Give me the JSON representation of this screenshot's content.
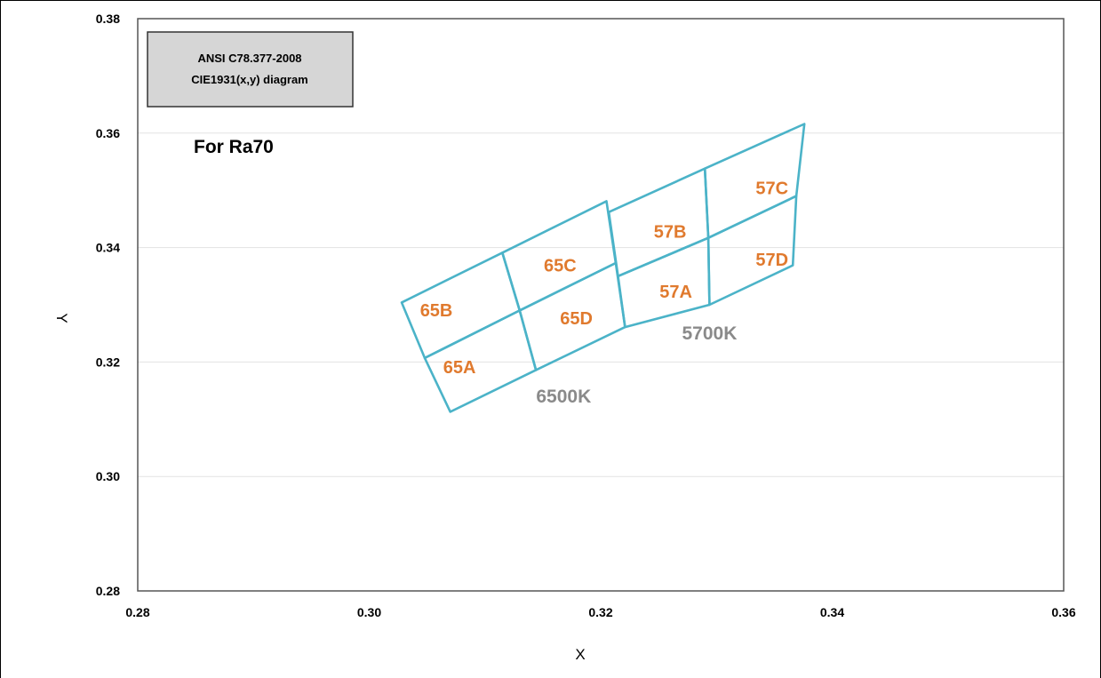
{
  "chart_data": {
    "type": "scatter",
    "title_box": [
      "ANSI C78.377-2008",
      "CIE1931(x,y)  diagram"
    ],
    "subtitle": "For Ra70",
    "xlabel": "X",
    "ylabel": "Y",
    "xlim": [
      0.28,
      0.36
    ],
    "ylim": [
      0.28,
      0.38
    ],
    "x_ticks": [
      "0.28",
      "0.30",
      "0.32",
      "0.34",
      "0.36"
    ],
    "y_ticks": [
      "0.28",
      "0.30",
      "0.32",
      "0.34",
      "0.36",
      "0.38"
    ],
    "grid": "horizontal",
    "colors": {
      "outline": "#4bb3c8",
      "bin_label": "#e07a2e",
      "cct_label": "#8a8a8a",
      "box_fill": "#d6d6d6",
      "grid": "#e2e2e2"
    },
    "bins": [
      {
        "name": "65A",
        "label_at": [
          0.3078,
          0.3191
        ],
        "corners": [
          [
            0.307,
            0.3113
          ],
          [
            0.3048,
            0.3207
          ],
          [
            0.313,
            0.329
          ],
          [
            0.3144,
            0.3186
          ]
        ]
      },
      {
        "name": "65B",
        "label_at": [
          0.3058,
          0.3291
        ],
        "corners": [
          [
            0.3048,
            0.3207
          ],
          [
            0.3028,
            0.3304
          ],
          [
            0.3115,
            0.3391
          ],
          [
            0.313,
            0.329
          ]
        ]
      },
      {
        "name": "65C",
        "label_at": [
          0.3165,
          0.3369
        ],
        "corners": [
          [
            0.313,
            0.329
          ],
          [
            0.3115,
            0.3391
          ],
          [
            0.3205,
            0.3481
          ],
          [
            0.3213,
            0.3373
          ]
        ]
      },
      {
        "name": "65D",
        "label_at": [
          0.3179,
          0.3277
        ],
        "corners": [
          [
            0.3144,
            0.3186
          ],
          [
            0.313,
            0.329
          ],
          [
            0.3213,
            0.3373
          ],
          [
            0.3221,
            0.3261
          ]
        ]
      },
      {
        "name": "57A",
        "label_at": [
          0.3265,
          0.3323
        ],
        "corners": [
          [
            0.3221,
            0.3261
          ],
          [
            0.3215,
            0.335
          ],
          [
            0.3293,
            0.3417
          ],
          [
            0.3294,
            0.33
          ]
        ]
      },
      {
        "name": "57B",
        "label_at": [
          0.326,
          0.3428
        ],
        "corners": [
          [
            0.3215,
            0.335
          ],
          [
            0.3207,
            0.3462
          ],
          [
            0.329,
            0.3538
          ],
          [
            0.3293,
            0.3417
          ]
        ]
      },
      {
        "name": "57C",
        "label_at": [
          0.3348,
          0.3504
        ],
        "corners": [
          [
            0.3293,
            0.3417
          ],
          [
            0.329,
            0.3538
          ],
          [
            0.3376,
            0.3616
          ],
          [
            0.3369,
            0.349
          ]
        ]
      },
      {
        "name": "57D",
        "label_at": [
          0.3348,
          0.3379
        ],
        "corners": [
          [
            0.3294,
            0.33
          ],
          [
            0.3293,
            0.3417
          ],
          [
            0.3369,
            0.349
          ],
          [
            0.3366,
            0.3369
          ]
        ]
      }
    ],
    "cct_groups": [
      {
        "name": "6500K",
        "label_at": [
          0.3168,
          0.314
        ]
      },
      {
        "name": "5700K",
        "label_at": [
          0.3294,
          0.325
        ]
      }
    ]
  }
}
